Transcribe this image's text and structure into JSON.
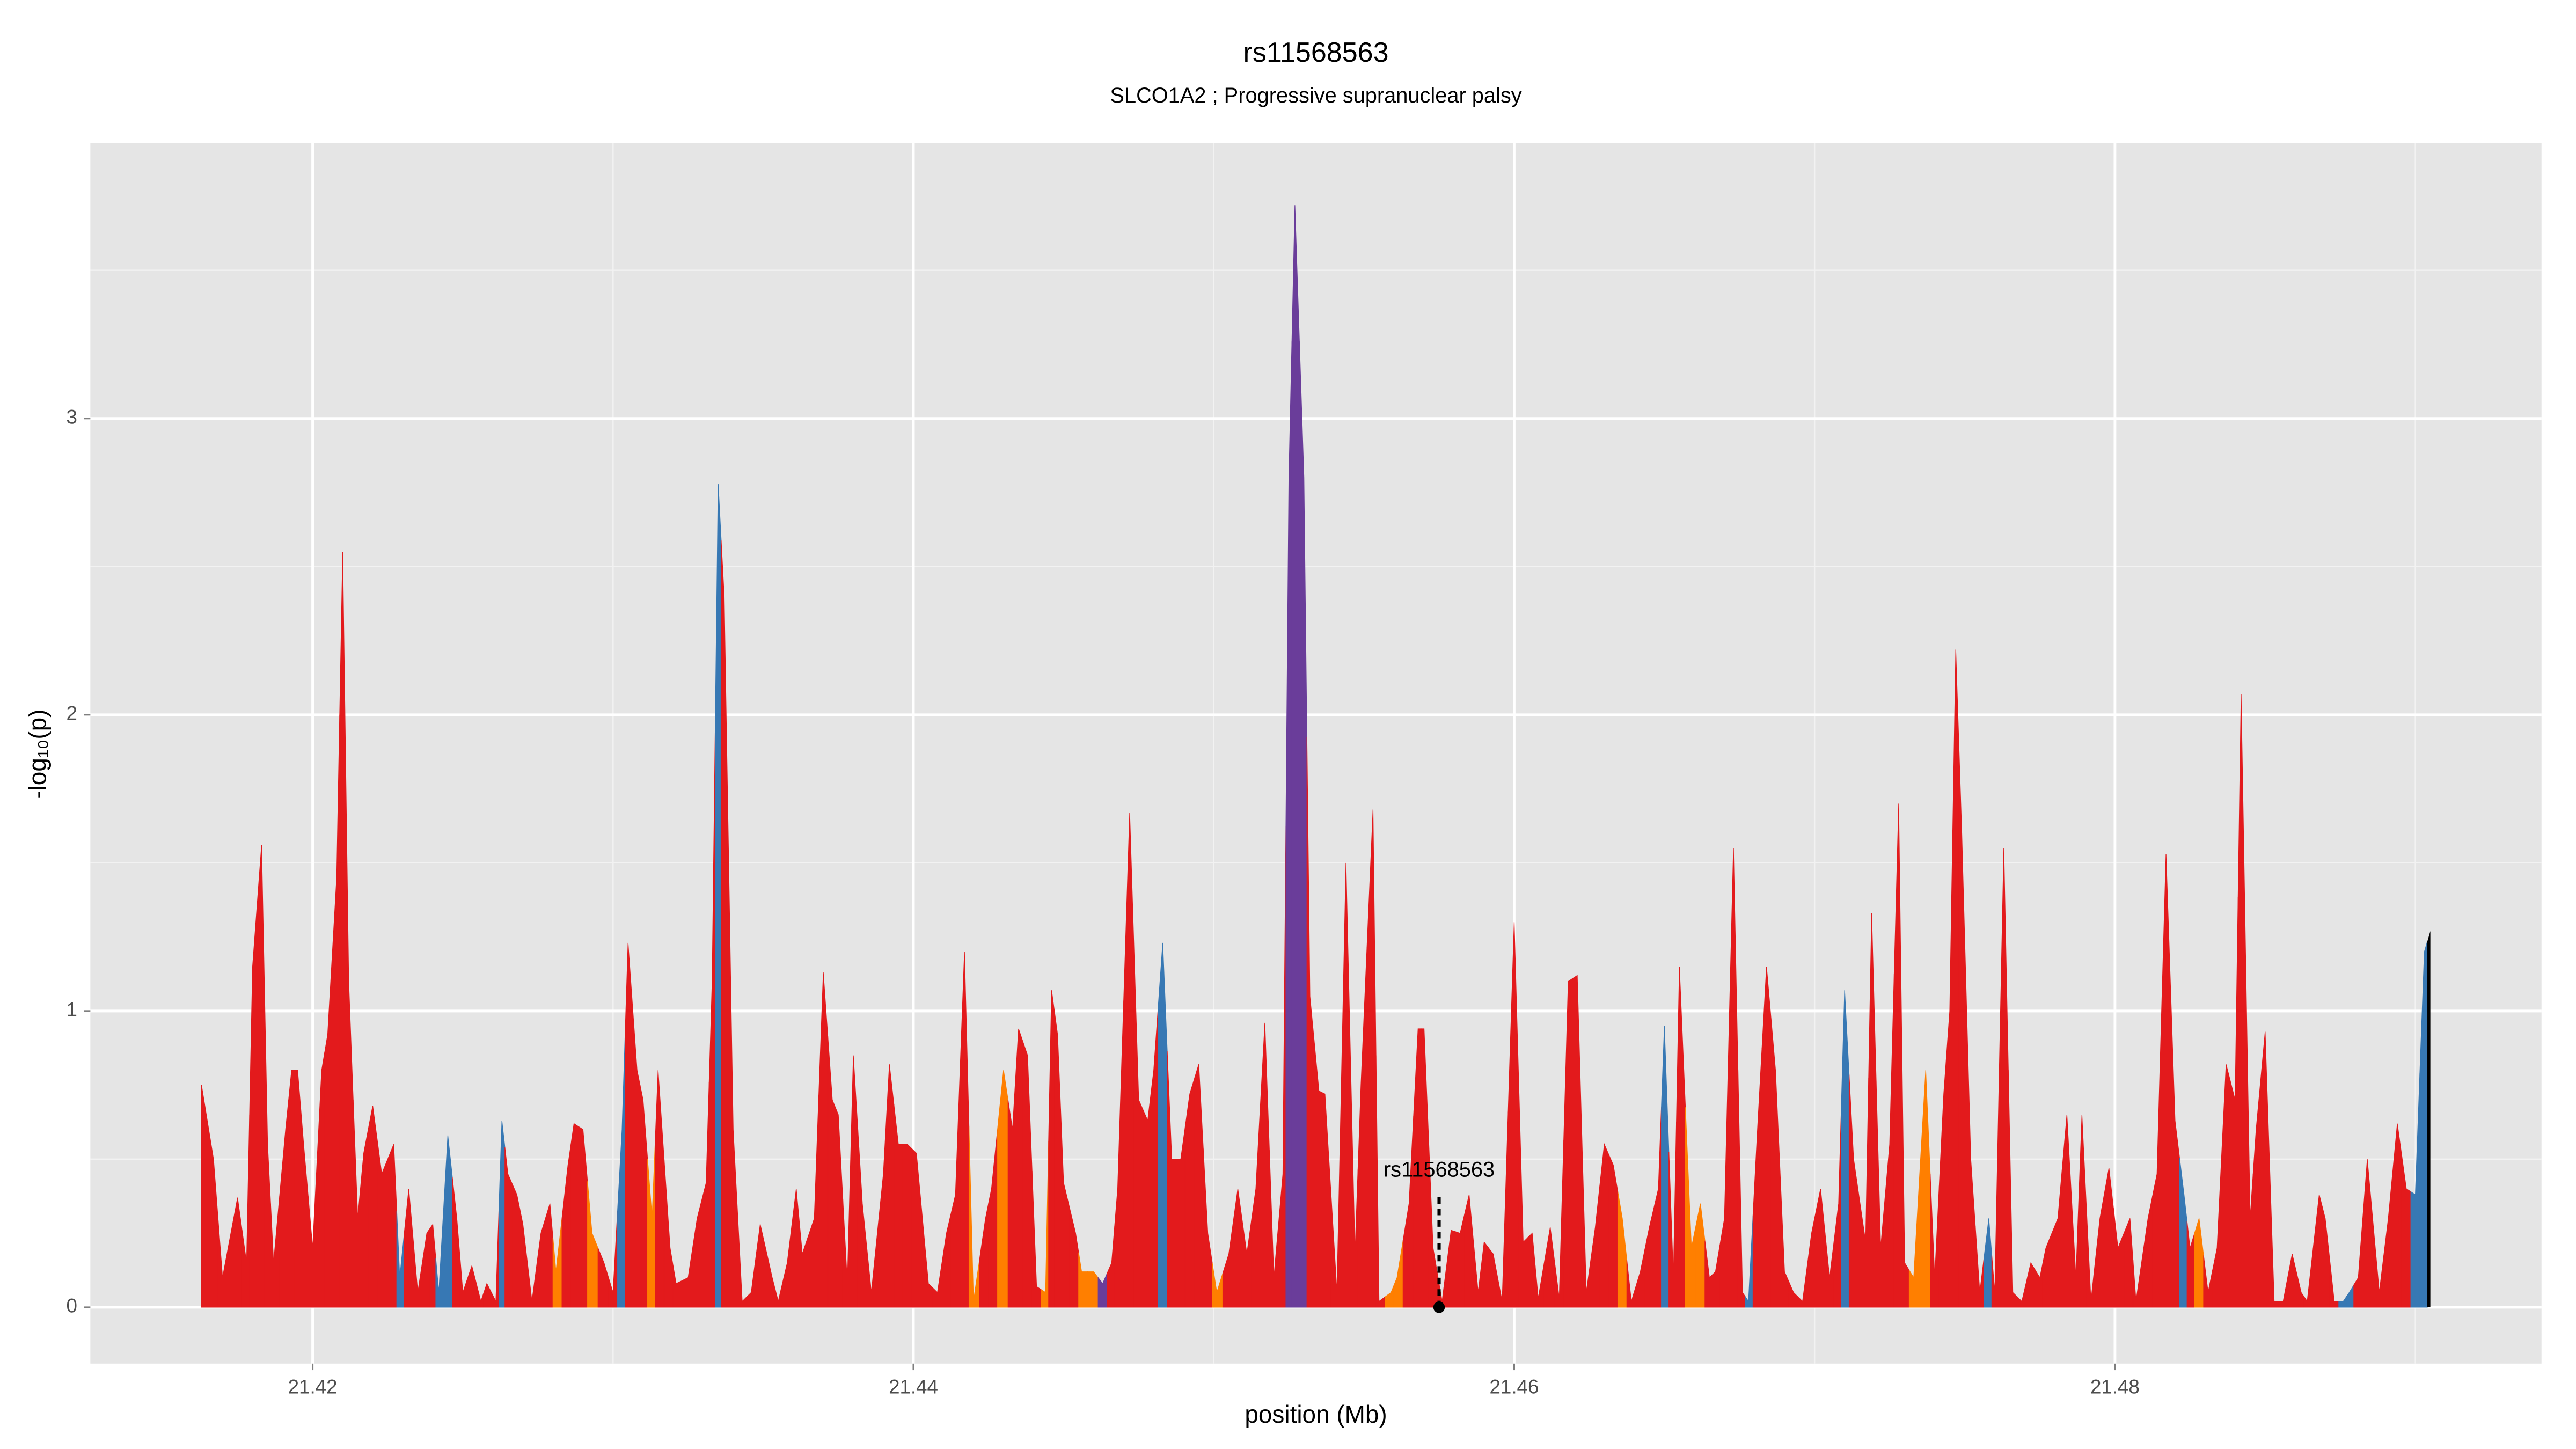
{
  "chart_data": {
    "type": "area",
    "title": "rs11568563",
    "subtitle": "SLCO1A2 ; Progressive supranuclear palsy",
    "x_label": "position (Mb)",
    "y_label": "-log₁₀(p)",
    "xlim": [
      21.4126,
      21.4942
    ],
    "ylim": [
      -0.19,
      3.93
    ],
    "xticks": [
      21.42,
      21.44,
      21.46,
      21.48
    ],
    "yticks": [
      0,
      1,
      2,
      3
    ],
    "x_minor_grid": [
      21.43,
      21.45,
      21.47,
      21.49
    ],
    "y_minor_grid": [
      0.5,
      1.5,
      2.5,
      3.5
    ],
    "grid": true,
    "annotation": {
      "text": "rs11568563",
      "x": 21.4575,
      "y": 0
    },
    "x": [
      21.4163,
      21.4167,
      21.417,
      21.4175,
      21.4178,
      21.418,
      21.4183,
      21.4185,
      21.4187,
      21.4191,
      21.4193,
      21.4195,
      21.4197,
      21.42,
      21.4203,
      21.4205,
      21.4208,
      21.421,
      21.4212,
      21.4215,
      21.4217,
      21.422,
      21.4223,
      21.4227,
      21.4229,
      21.4232,
      21.4235,
      21.4238,
      21.424,
      21.4242,
      21.4245,
      21.4248,
      21.425,
      21.4253,
      21.4256,
      21.4258,
      21.4261,
      21.4263,
      21.4265,
      21.4268,
      21.427,
      21.4273,
      21.4276,
      21.4279,
      21.4281,
      21.4285,
      21.4287,
      21.429,
      21.4293,
      21.4297,
      21.43,
      21.4303,
      21.4305,
      21.4308,
      21.431,
      21.4313,
      21.4315,
      21.4319,
      21.4321,
      21.4325,
      21.4328,
      21.4331,
      21.4333,
      21.4335,
      21.4337,
      21.434,
      21.4343,
      21.4346,
      21.4349,
      21.4353,
      21.4355,
      21.4358,
      21.4361,
      21.4363,
      21.4367,
      21.437,
      21.4373,
      21.4375,
      21.4378,
      21.438,
      21.4383,
      21.4386,
      21.439,
      21.4392,
      21.4395,
      21.4398,
      21.4401,
      21.4405,
      21.4408,
      21.4411,
      21.4414,
      21.4417,
      21.442,
      21.4424,
      21.4426,
      21.443,
      21.4433,
      21.4435,
      21.4438,
      21.4441,
      21.4444,
      21.4446,
      21.4448,
      21.445,
      21.4454,
      21.4456,
      21.446,
      21.4463,
      21.4466,
      21.4468,
      21.4472,
      21.4475,
      21.4478,
      21.448,
      21.4483,
      21.4486,
      21.4489,
      21.4492,
      21.4495,
      21.4498,
      21.4501,
      21.4505,
      21.4508,
      21.4511,
      21.4514,
      21.4517,
      21.452,
      21.4523,
      21.4525,
      21.4527,
      21.453,
      21.4532,
      21.4535,
      21.4537,
      21.4541,
      21.4544,
      21.4547,
      21.4549,
      21.4553,
      21.4555,
      21.4559,
      21.4561,
      21.4565,
      21.4568,
      21.457,
      21.4573,
      21.4576,
      21.4579,
      21.4582,
      21.4585,
      21.4588,
      21.459,
      21.4593,
      21.4596,
      21.46,
      21.4603,
      21.4606,
      21.4608,
      21.4612,
      21.4615,
      21.4618,
      21.4621,
      21.4624,
      21.4627,
      21.463,
      21.4633,
      21.4636,
      21.4639,
      21.4642,
      21.4645,
      21.4648,
      21.465,
      21.4653,
      21.4655,
      21.4659,
      21.4662,
      21.4665,
      21.4667,
      21.467,
      21.4673,
      21.4676,
      21.4678,
      21.4681,
      21.4684,
      21.4687,
      21.469,
      21.4693,
      21.4696,
      21.4699,
      21.4702,
      21.4705,
      21.4708,
      21.471,
      21.4713,
      21.4717,
      21.4719,
      21.4722,
      21.4725,
      21.4728,
      21.473,
      21.4733,
      21.4737,
      21.474,
      21.4743,
      21.4745,
      21.4747,
      21.4749,
      21.4752,
      21.4755,
      21.4758,
      21.476,
      21.4763,
      21.4766,
      21.4769,
      21.4772,
      21.4775,
      21.4777,
      21.4781,
      21.4784,
      21.4787,
      21.4789,
      21.4792,
      21.4795,
      21.4798,
      21.4801,
      21.4805,
      21.4807,
      21.4811,
      21.4814,
      21.4817,
      21.482,
      21.4823,
      21.4825,
      21.4828,
      21.4831,
      21.4834,
      21.4837,
      21.484,
      21.4842,
      21.4845,
      21.4847,
      21.485,
      21.4853,
      21.4856,
      21.4859,
      21.4862,
      21.4864,
      21.4868,
      21.487,
      21.4873,
      21.4876,
      21.4878,
      21.4881,
      21.4884,
      21.4888,
      21.4891,
      21.4894,
      21.4897,
      21.49,
      21.4903,
      21.4905
    ],
    "values": [
      0.75,
      0.5,
      0.1,
      0.37,
      0.15,
      1.15,
      1.56,
      0.55,
      0.15,
      0.6,
      0.8,
      0.8,
      0.55,
      0.2,
      0.8,
      0.92,
      1.45,
      2.55,
      1.1,
      0.3,
      0.52,
      0.68,
      0.45,
      0.55,
      0.1,
      0.4,
      0.05,
      0.25,
      0.28,
      0.05,
      0.58,
      0.3,
      0.05,
      0.14,
      0.02,
      0.08,
      0.02,
      0.63,
      0.45,
      0.38,
      0.28,
      0.02,
      0.25,
      0.35,
      0.12,
      0.48,
      0.62,
      0.6,
      0.25,
      0.15,
      0.05,
      0.6,
      1.23,
      0.8,
      0.7,
      0.3,
      0.8,
      0.2,
      0.08,
      0.1,
      0.3,
      0.42,
      1.1,
      2.78,
      2.4,
      0.6,
      0.02,
      0.05,
      0.28,
      0.1,
      0.02,
      0.15,
      0.4,
      0.18,
      0.3,
      1.13,
      0.7,
      0.65,
      0.08,
      0.85,
      0.35,
      0.05,
      0.45,
      0.82,
      0.55,
      0.55,
      0.52,
      0.08,
      0.05,
      0.25,
      0.38,
      1.2,
      0.02,
      0.3,
      0.4,
      0.8,
      0.6,
      0.94,
      0.85,
      0.07,
      0.05,
      1.07,
      0.92,
      0.42,
      0.25,
      0.12,
      0.12,
      0.08,
      0.15,
      0.4,
      1.67,
      0.7,
      0.63,
      0.8,
      1.23,
      0.5,
      0.5,
      0.72,
      0.82,
      0.25,
      0.05,
      0.18,
      0.4,
      0.18,
      0.4,
      0.96,
      0.1,
      0.45,
      2.8,
      3.72,
      2.8,
      1.05,
      0.73,
      0.72,
      0.05,
      1.5,
      0.18,
      0.75,
      1.68,
      0.02,
      0.05,
      0.1,
      0.35,
      0.94,
      0.94,
      0.2,
      0.02,
      0.26,
      0.25,
      0.38,
      0.05,
      0.22,
      0.18,
      0.02,
      1.3,
      0.22,
      0.25,
      0.03,
      0.27,
      0.03,
      1.1,
      1.12,
      0.05,
      0.27,
      0.55,
      0.48,
      0.3,
      0.02,
      0.12,
      0.27,
      0.4,
      0.95,
      0.1,
      1.15,
      0.2,
      0.35,
      0.1,
      0.12,
      0.3,
      1.55,
      0.05,
      0.02,
      0.6,
      1.15,
      0.8,
      0.12,
      0.05,
      0.02,
      0.25,
      0.4,
      0.1,
      0.35,
      1.07,
      0.5,
      0.22,
      1.33,
      0.2,
      0.55,
      1.7,
      0.15,
      0.1,
      0.8,
      0.1,
      0.72,
      1.0,
      2.22,
      1.6,
      0.5,
      0.05,
      0.3,
      0.05,
      1.55,
      0.05,
      0.02,
      0.15,
      0.1,
      0.2,
      0.3,
      0.65,
      0.1,
      0.65,
      0.02,
      0.3,
      0.47,
      0.2,
      0.3,
      0.02,
      0.3,
      0.45,
      1.53,
      0.63,
      0.38,
      0.2,
      0.3,
      0.05,
      0.2,
      0.82,
      0.7,
      2.07,
      0.3,
      0.6,
      0.93,
      0.02,
      0.02,
      0.18,
      0.05,
      0.02,
      0.38,
      0.3,
      0.02,
      0.02,
      0.05,
      0.1,
      0.5,
      0.05,
      0.3,
      0.62,
      0.4,
      0.38,
      1.2,
      1.27
    ],
    "point_colors": [
      "#e31a1c",
      "#e31a1c",
      "#e31a1c",
      "#e31a1c",
      "#e31a1c",
      "#e31a1c",
      "#e31a1c",
      "#e31a1c",
      "#e31a1c",
      "#e31a1c",
      "#e31a1c",
      "#e31a1c",
      "#e31a1c",
      "#e31a1c",
      "#e31a1c",
      "#e31a1c",
      "#e31a1c",
      "#e31a1c",
      "#e31a1c",
      "#e31a1c",
      "#e31a1c",
      "#e31a1c",
      "#e31a1c",
      "#e31a1c",
      "#3778b4",
      "#e31a1c",
      "#e31a1c",
      "#e31a1c",
      "#e31a1c",
      "#3778b4",
      "#3778b4",
      "#e31a1c",
      "#e31a1c",
      "#e31a1c",
      "#e31a1c",
      "#e31a1c",
      "#e31a1c",
      "#3778b4",
      "#e31a1c",
      "#e31a1c",
      "#e31a1c",
      "#e31a1c",
      "#e31a1c",
      "#e31a1c",
      "#ff7f00",
      "#e31a1c",
      "#e31a1c",
      "#e31a1c",
      "#ff7f00",
      "#e31a1c",
      "#e31a1c",
      "#3778b4",
      "#e31a1c",
      "#e31a1c",
      "#e31a1c",
      "#ff7f00",
      "#e31a1c",
      "#e31a1c",
      "#e31a1c",
      "#e31a1c",
      "#e31a1c",
      "#e31a1c",
      "#e31a1c",
      "#3778b4",
      "#e31a1c",
      "#e31a1c",
      "#e31a1c",
      "#e31a1c",
      "#e31a1c",
      "#e31a1c",
      "#e31a1c",
      "#e31a1c",
      "#e31a1c",
      "#e31a1c",
      "#e31a1c",
      "#e31a1c",
      "#e31a1c",
      "#e31a1c",
      "#e31a1c",
      "#e31a1c",
      "#e31a1c",
      "#e31a1c",
      "#e31a1c",
      "#e31a1c",
      "#e31a1c",
      "#e31a1c",
      "#e31a1c",
      "#e31a1c",
      "#e31a1c",
      "#e31a1c",
      "#e31a1c",
      "#e31a1c",
      "#ff7f00",
      "#e31a1c",
      "#e31a1c",
      "#ff7f00",
      "#e31a1c",
      "#e31a1c",
      "#e31a1c",
      "#e31a1c",
      "#ff7f00",
      "#e31a1c",
      "#e31a1c",
      "#e31a1c",
      "#e31a1c",
      "#ff7f00",
      "#ff7f00",
      "#6a3d9a",
      "#e31a1c",
      "#e31a1c",
      "#e31a1c",
      "#e31a1c",
      "#e31a1c",
      "#e31a1c",
      "#3778b4",
      "#e31a1c",
      "#e31a1c",
      "#e31a1c",
      "#e31a1c",
      "#e31a1c",
      "#ff7f00",
      "#e31a1c",
      "#e31a1c",
      "#e31a1c",
      "#e31a1c",
      "#e31a1c",
      "#e31a1c",
      "#e31a1c",
      "#6a3d9a",
      "#6a3d9a",
      "#6a3d9a",
      "#e31a1c",
      "#e31a1c",
      "#e31a1c",
      "#e31a1c",
      "#e31a1c",
      "#e31a1c",
      "#e31a1c",
      "#e31a1c",
      "#e31a1c",
      "#ff7f00",
      "#ff7f00",
      "#e31a1c",
      "#e31a1c",
      "#e31a1c",
      "#e31a1c",
      "#e31a1c",
      "#e31a1c",
      "#e31a1c",
      "#e31a1c",
      "#e31a1c",
      "#e31a1c",
      "#e31a1c",
      "#e31a1c",
      "#e31a1c",
      "#e31a1c",
      "#e31a1c",
      "#e31a1c",
      "#e31a1c",
      "#e31a1c",
      "#e31a1c",
      "#e31a1c",
      "#e31a1c",
      "#e31a1c",
      "#e31a1c",
      "#e31a1c",
      "#ff7f00",
      "#e31a1c",
      "#e31a1c",
      "#e31a1c",
      "#e31a1c",
      "#3778b4",
      "#e31a1c",
      "#e31a1c",
      "#ff7f00",
      "#ff7f00",
      "#e31a1c",
      "#e31a1c",
      "#e31a1c",
      "#e31a1c",
      "#e31a1c",
      "#3778b4",
      "#e31a1c",
      "#e31a1c",
      "#e31a1c",
      "#e31a1c",
      "#e31a1c",
      "#e31a1c",
      "#e31a1c",
      "#e31a1c",
      "#e31a1c",
      "#e31a1c",
      "#3778b4",
      "#e31a1c",
      "#e31a1c",
      "#e31a1c",
      "#e31a1c",
      "#e31a1c",
      "#e31a1c",
      "#e31a1c",
      "#ff7f00",
      "#ff7f00",
      "#e31a1c",
      "#e31a1c",
      "#e31a1c",
      "#e31a1c",
      "#e31a1c",
      "#e31a1c",
      "#e31a1c",
      "#3778b4",
      "#e31a1c",
      "#e31a1c",
      "#e31a1c",
      "#e31a1c",
      "#e31a1c",
      "#e31a1c",
      "#e31a1c",
      "#e31a1c",
      "#e31a1c",
      "#e31a1c",
      "#e31a1c",
      "#e31a1c",
      "#e31a1c",
      "#e31a1c",
      "#e31a1c",
      "#e31a1c",
      "#e31a1c",
      "#e31a1c",
      "#e31a1c",
      "#e31a1c",
      "#e31a1c",
      "#3778b4",
      "#e31a1c",
      "#ff7f00",
      "#e31a1c",
      "#e31a1c",
      "#e31a1c",
      "#e31a1c",
      "#e31a1c",
      "#e31a1c",
      "#e31a1c",
      "#e31a1c",
      "#e31a1c",
      "#e31a1c",
      "#e31a1c",
      "#e31a1c",
      "#e31a1c",
      "#e31a1c",
      "#e31a1c",
      "#e31a1c",
      "#3778b4",
      "#3778b4",
      "#e31a1c",
      "#e31a1c",
      "#e31a1c",
      "#e31a1c",
      "#e31a1c",
      "#e31a1c",
      "#3778b4",
      "#3778b4"
    ]
  }
}
